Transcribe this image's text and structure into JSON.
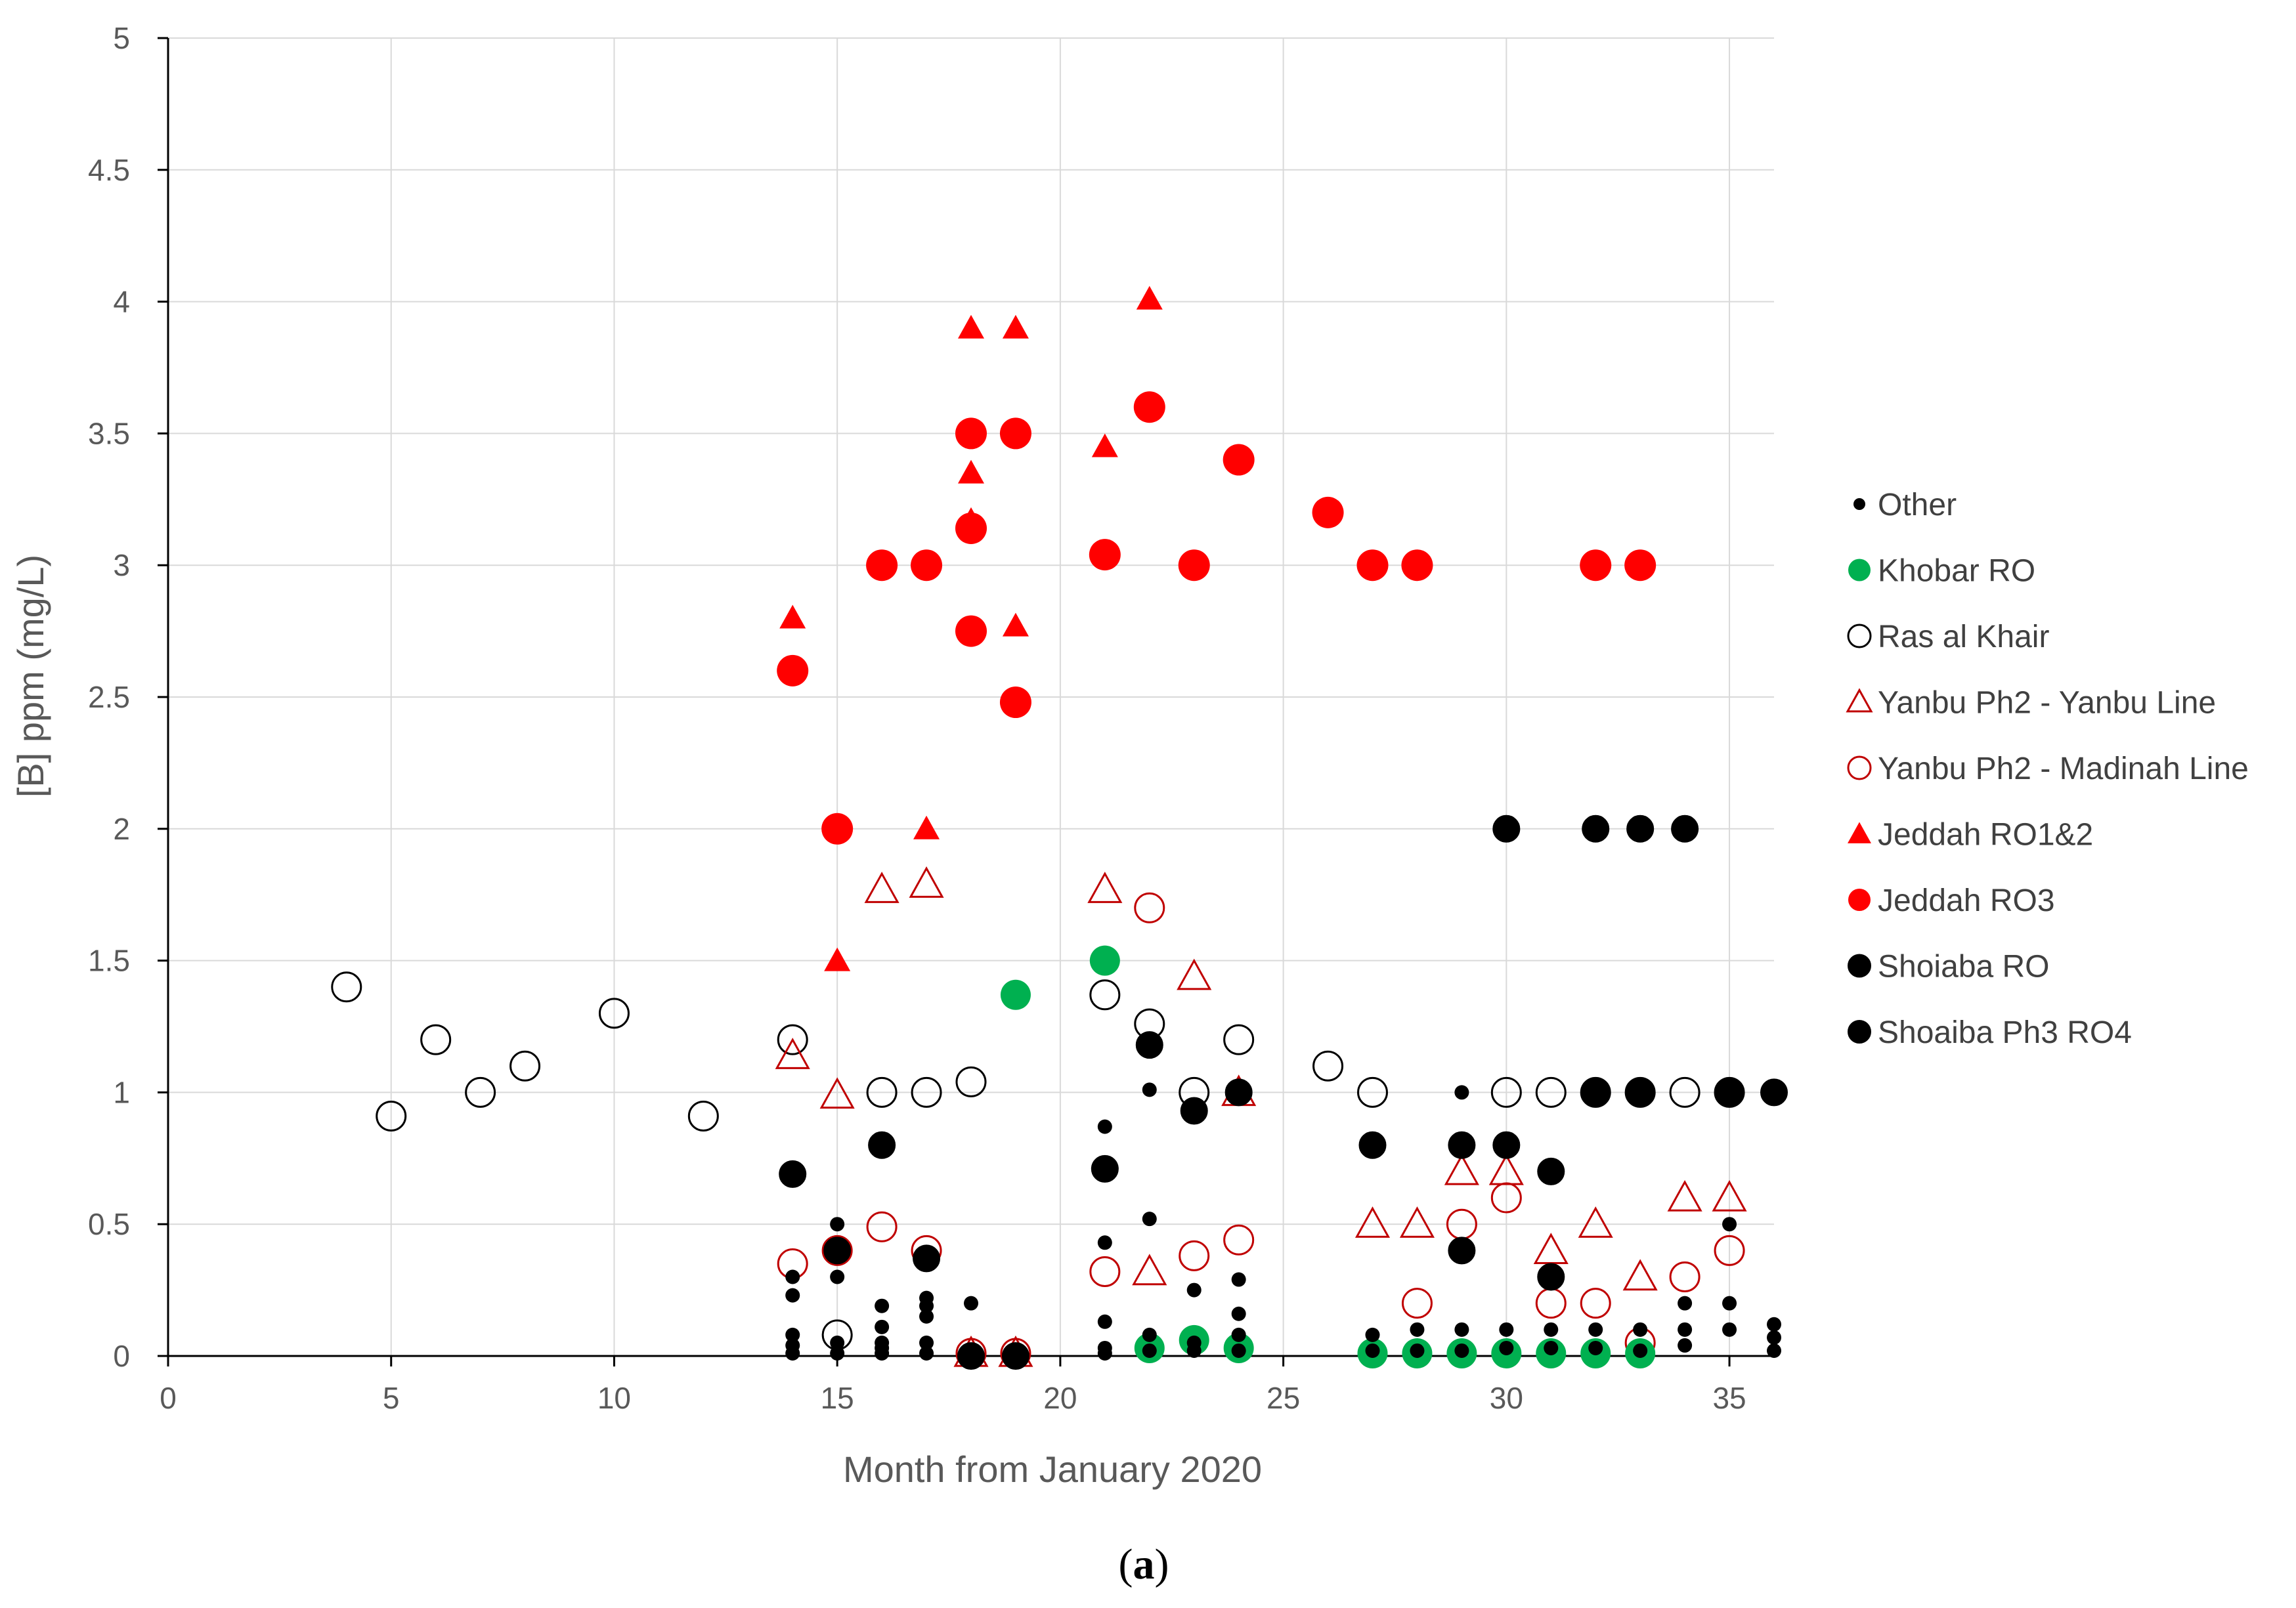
{
  "chart_data": {
    "type": "scatter",
    "title": "",
    "xlabel": "Month from January 2020",
    "ylabel": "[B] ppm (mg/L)",
    "xlim": [
      0,
      36
    ],
    "ylim": [
      0,
      5
    ],
    "xticks": [
      0,
      5,
      10,
      15,
      20,
      25,
      30,
      35
    ],
    "yticks": [
      0,
      0.5,
      1,
      1.5,
      2,
      2.5,
      3,
      3.5,
      4,
      4.5,
      5
    ],
    "grid": true,
    "legend_position": "right",
    "caption_open": "(",
    "caption_letter": "a",
    "caption_close": ")",
    "colors": {
      "black": "#000000",
      "red": "#ff0000",
      "dark_red": "#c00000",
      "green": "#00b050",
      "grid": "#d9d9d9",
      "axis": "#000000"
    },
    "series": [
      {
        "name": "Other",
        "marker": "small-dot",
        "points": [
          [
            14,
            0.3
          ],
          [
            14,
            0.23
          ],
          [
            14,
            0.08
          ],
          [
            14,
            0.04
          ],
          [
            14,
            0.01
          ],
          [
            15,
            0.5
          ],
          [
            15,
            0.3
          ],
          [
            15,
            0.05
          ],
          [
            15,
            0.01
          ],
          [
            16,
            0.19
          ],
          [
            16,
            0.11
          ],
          [
            16,
            0.05
          ],
          [
            16,
            0.03
          ],
          [
            16,
            0.01
          ],
          [
            17,
            0.22
          ],
          [
            17,
            0.19
          ],
          [
            17,
            0.15
          ],
          [
            17,
            0.05
          ],
          [
            17,
            0.01
          ],
          [
            18,
            0.2
          ],
          [
            18,
            0.02
          ],
          [
            19,
            0.01
          ],
          [
            21,
            0.87
          ],
          [
            21,
            0.43
          ],
          [
            21,
            0.13
          ],
          [
            21,
            0.03
          ],
          [
            21,
            0.01
          ],
          [
            22,
            1.01
          ],
          [
            22,
            0.52
          ],
          [
            22,
            0.08
          ],
          [
            22,
            0.02
          ],
          [
            23,
            0.25
          ],
          [
            23,
            0.05
          ],
          [
            23,
            0.02
          ],
          [
            24,
            0.29
          ],
          [
            24,
            0.16
          ],
          [
            24,
            0.08
          ],
          [
            24,
            0.02
          ],
          [
            27,
            0.08
          ],
          [
            27,
            0.02
          ],
          [
            28,
            0.1
          ],
          [
            28,
            0.02
          ],
          [
            29,
            1.0
          ],
          [
            29,
            0.1
          ],
          [
            29,
            0.02
          ],
          [
            30,
            0.1
          ],
          [
            30,
            0.03
          ],
          [
            31,
            0.1
          ],
          [
            31,
            0.03
          ],
          [
            32,
            0.1
          ],
          [
            32,
            0.03
          ],
          [
            33,
            0.1
          ],
          [
            33,
            0.02
          ],
          [
            34,
            0.2
          ],
          [
            34,
            0.1
          ],
          [
            34,
            0.04
          ],
          [
            35,
            0.5
          ],
          [
            35,
            0.2
          ],
          [
            35,
            0.1
          ],
          [
            36,
            0.12
          ],
          [
            36,
            0.07
          ],
          [
            36,
            0.02
          ]
        ]
      },
      {
        "name": "Khobar RO",
        "marker": "circle-filled-green",
        "points": [
          [
            19,
            1.37
          ],
          [
            21,
            1.5
          ],
          [
            22,
            0.03
          ],
          [
            23,
            0.06
          ],
          [
            24,
            0.03
          ],
          [
            27,
            0.01
          ],
          [
            28,
            0.01
          ],
          [
            29,
            0.01
          ],
          [
            30,
            0.01
          ],
          [
            31,
            0.01
          ],
          [
            32,
            0.01
          ],
          [
            33,
            0.01
          ]
        ]
      },
      {
        "name": "Ras al Khair",
        "marker": "circle-open-black",
        "points": [
          [
            4,
            1.4
          ],
          [
            5,
            0.91
          ],
          [
            6,
            1.2
          ],
          [
            7,
            1.0
          ],
          [
            8,
            1.1
          ],
          [
            10,
            1.3
          ],
          [
            12,
            0.91
          ],
          [
            14,
            1.2
          ],
          [
            15,
            0.08
          ],
          [
            16,
            1.0
          ],
          [
            17,
            1.0
          ],
          [
            18,
            1.04
          ],
          [
            21,
            1.37
          ],
          [
            22,
            1.26
          ],
          [
            23,
            1.0
          ],
          [
            24,
            1.2
          ],
          [
            26,
            1.1
          ],
          [
            27,
            1.0
          ],
          [
            30,
            1.0
          ],
          [
            31,
            1.0
          ],
          [
            32,
            1.0
          ],
          [
            33,
            1.0
          ],
          [
            34,
            1.0
          ],
          [
            35,
            1.0
          ]
        ]
      },
      {
        "name": "Yanbu Ph2 - Yanbu Line",
        "marker": "triangle-open-red",
        "points": [
          [
            14,
            1.14
          ],
          [
            15,
            0.99
          ],
          [
            16,
            1.77
          ],
          [
            17,
            1.79
          ],
          [
            18,
            0.01
          ],
          [
            19,
            0.01
          ],
          [
            21,
            1.77
          ],
          [
            22,
            0.32
          ],
          [
            23,
            1.44
          ],
          [
            24,
            1.0
          ],
          [
            27,
            0.5
          ],
          [
            28,
            0.5
          ],
          [
            29,
            0.7
          ],
          [
            30,
            0.7
          ],
          [
            31,
            0.4
          ],
          [
            32,
            0.5
          ],
          [
            33,
            0.3
          ],
          [
            34,
            0.6
          ],
          [
            35,
            0.6
          ]
        ]
      },
      {
        "name": "Yanbu Ph2 - Madinah Line",
        "marker": "circle-open-red",
        "points": [
          [
            14,
            0.35
          ],
          [
            15,
            0.4
          ],
          [
            16,
            0.49
          ],
          [
            17,
            0.4
          ],
          [
            18,
            0.01
          ],
          [
            19,
            0.01
          ],
          [
            21,
            0.32
          ],
          [
            22,
            1.7
          ],
          [
            23,
            0.38
          ],
          [
            24,
            0.44
          ],
          [
            28,
            0.2
          ],
          [
            29,
            0.5
          ],
          [
            30,
            0.6
          ],
          [
            31,
            0.2
          ],
          [
            32,
            0.2
          ],
          [
            33,
            0.05
          ],
          [
            34,
            0.3
          ],
          [
            35,
            0.4
          ]
        ]
      },
      {
        "name": "Jeddah RO1&2",
        "marker": "triangle-filled-red",
        "points": [
          [
            14,
            2.8
          ],
          [
            15,
            1.5
          ],
          [
            17,
            2.0
          ],
          [
            18,
            3.9
          ],
          [
            18,
            3.35
          ],
          [
            18,
            3.17
          ],
          [
            19,
            3.9
          ],
          [
            19,
            2.77
          ],
          [
            21,
            3.45
          ],
          [
            22,
            4.01
          ]
        ]
      },
      {
        "name": "Jeddah RO3",
        "marker": "circle-filled-red",
        "points": [
          [
            14,
            2.6
          ],
          [
            15,
            2.0
          ],
          [
            16,
            3.0
          ],
          [
            17,
            3.0
          ],
          [
            18,
            3.5
          ],
          [
            18,
            3.14
          ],
          [
            18,
            2.75
          ],
          [
            19,
            3.5
          ],
          [
            19,
            2.48
          ],
          [
            21,
            3.04
          ],
          [
            22,
            3.6
          ],
          [
            23,
            3.0
          ],
          [
            24,
            3.4
          ],
          [
            26,
            3.2
          ],
          [
            27,
            3.0
          ],
          [
            28,
            3.0
          ],
          [
            32,
            3.0
          ],
          [
            33,
            3.0
          ]
        ]
      },
      {
        "name": "Shoiaba RO",
        "marker": "circle-filled-black",
        "points": [
          [
            14,
            0.69
          ],
          [
            15,
            0.4
          ],
          [
            16,
            0.8
          ],
          [
            17,
            0.37
          ],
          [
            18,
            0.0
          ],
          [
            19,
            0.0
          ],
          [
            21,
            0.71
          ],
          [
            22,
            1.18
          ],
          [
            23,
            0.93
          ],
          [
            24,
            1.0
          ],
          [
            27,
            0.8
          ],
          [
            29,
            0.8
          ],
          [
            29,
            0.4
          ],
          [
            30,
            0.8
          ],
          [
            31,
            0.7
          ],
          [
            31,
            0.3
          ],
          [
            32,
            1.0
          ],
          [
            33,
            1.0
          ],
          [
            35,
            1.0
          ],
          [
            36,
            1.0
          ]
        ]
      },
      {
        "name": "Shoaiba Ph3 RO4",
        "marker": "circle-filled-black",
        "points": [
          [
            30,
            2.0
          ],
          [
            32,
            2.0
          ],
          [
            33,
            2.0
          ],
          [
            34,
            2.0
          ]
        ]
      }
    ]
  }
}
